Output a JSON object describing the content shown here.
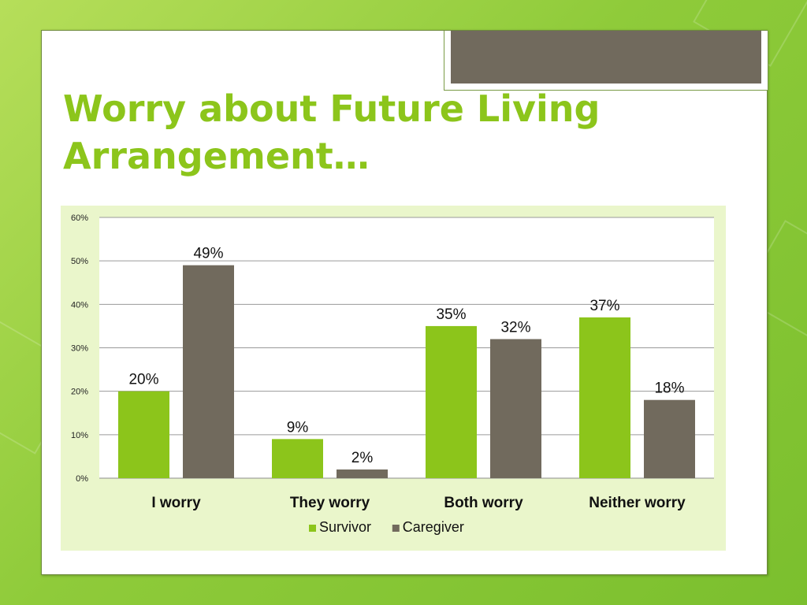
{
  "slide": {
    "title_line1": "Worry about Future Living",
    "title_line2": "Arrangement…"
  },
  "colors": {
    "accent": "#8cc51b",
    "survivor": "#8cc51b",
    "caregiver": "#716a5d",
    "plot_bg": "#eaf6cb",
    "title_tab": "#716a5d"
  },
  "chart_data": {
    "type": "bar",
    "title": "",
    "xlabel": "",
    "ylabel": "",
    "categories": [
      "I worry",
      "They worry",
      "Both worry",
      "Neither worry"
    ],
    "series": [
      {
        "name": "Survivor",
        "values": [
          20,
          9,
          35,
          37
        ],
        "labels": [
          "20%",
          "9%",
          "35%",
          "37%"
        ]
      },
      {
        "name": "Caregiver",
        "values": [
          49,
          2,
          32,
          18
        ],
        "labels": [
          "49%",
          "2%",
          "32%",
          "18%"
        ]
      }
    ],
    "ylim": [
      0,
      60
    ],
    "yticks": [
      "0%",
      "10%",
      "20%",
      "30%",
      "40%",
      "50%",
      "60%"
    ],
    "grid": true,
    "legend_position": "bottom"
  }
}
